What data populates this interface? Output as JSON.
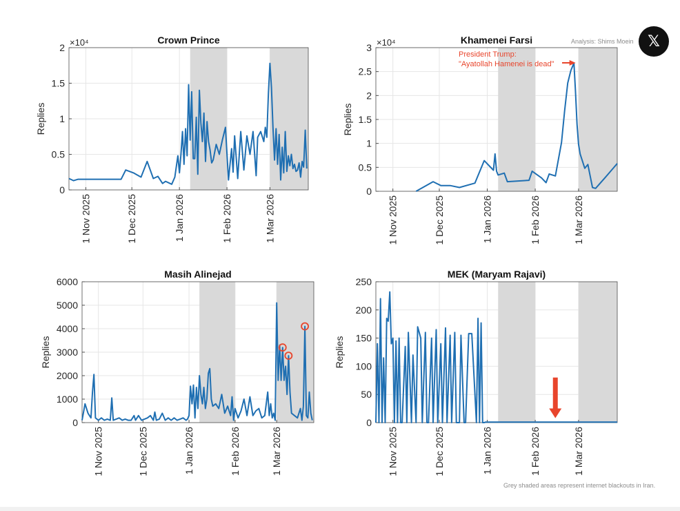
{
  "attribution": "Analysis: Shims Moein",
  "logo": {
    "icon": "x-logo-icon",
    "glyph": "𝕏"
  },
  "footnote": "Grey shaded areas represent internet blackouts in Iran.",
  "colors": {
    "line": "#1f6fb2",
    "blackout": "#d9d9d9",
    "annotation": "#e8452c",
    "grid": "#e6e6e6"
  },
  "chart_data": [
    {
      "type": "line",
      "title": "Crown Prince",
      "ylabel": "Replies",
      "y_multiplier": "×10⁴",
      "y_scale": 10000,
      "ylim": [
        0,
        20000
      ],
      "yticks": [
        0,
        5000,
        10000,
        15000,
        20000
      ],
      "ytick_labels": [
        "0",
        "0.5",
        "1",
        "1.5",
        "2"
      ],
      "xlim": [
        "2025-10-21",
        "2026-03-26"
      ],
      "xticks": [
        "2025-11-01",
        "2025-12-01",
        "2026-01-01",
        "2026-02-01",
        "2026-03-01"
      ],
      "xtick_labels": [
        "1 Nov 2025",
        "1 Dec 2025",
        "1 Jan 2026",
        "1 Feb 2026",
        "1 Mar 2026"
      ],
      "blackouts": [
        [
          "2026-01-08",
          "2026-02-01"
        ],
        [
          "2026-03-01",
          "2026-03-26"
        ]
      ],
      "series": [
        {
          "x": [
            "2025-10-21",
            "2025-10-24",
            "2025-10-27",
            "2025-11-10",
            "2025-11-24",
            "2025-11-27",
            "2025-12-02",
            "2025-12-07",
            "2025-12-11",
            "2025-12-15",
            "2025-12-18",
            "2025-12-21",
            "2025-12-23",
            "2025-12-27",
            "2025-12-29",
            "2025-12-31",
            "2026-01-01",
            "2026-01-02",
            "2026-01-03",
            "2026-01-04",
            "2026-01-05",
            "2026-01-06",
            "2026-01-07",
            "2026-01-08",
            "2026-01-09",
            "2026-01-10",
            "2026-01-11",
            "2026-01-12",
            "2026-01-13",
            "2026-01-14",
            "2026-01-15",
            "2026-01-16",
            "2026-01-17",
            "2026-01-18",
            "2026-01-19",
            "2026-01-20",
            "2026-01-21",
            "2026-01-22",
            "2026-01-23",
            "2026-01-25",
            "2026-01-27",
            "2026-01-29",
            "2026-01-31",
            "2026-02-02",
            "2026-02-04",
            "2026-02-05",
            "2026-02-06",
            "2026-02-08",
            "2026-02-10",
            "2026-02-12",
            "2026-02-14",
            "2026-02-16",
            "2026-02-18",
            "2026-02-20",
            "2026-02-21",
            "2026-02-23",
            "2026-02-25",
            "2026-02-26",
            "2026-02-27",
            "2026-02-28",
            "2026-03-01",
            "2026-03-02",
            "2026-03-03",
            "2026-03-04",
            "2026-03-05",
            "2026-03-06",
            "2026-03-07",
            "2026-03-08",
            "2026-03-09",
            "2026-03-10",
            "2026-03-11",
            "2026-03-12",
            "2026-03-13",
            "2026-03-14",
            "2026-03-15",
            "2026-03-16",
            "2026-03-17",
            "2026-03-18",
            "2026-03-19",
            "2026-03-20",
            "2026-03-21",
            "2026-03-22",
            "2026-03-23",
            "2026-03-24",
            "2026-03-25"
          ],
          "y": [
            1600,
            1300,
            1500,
            1500,
            1500,
            2800,
            2400,
            1800,
            4000,
            1600,
            1900,
            900,
            1200,
            800,
            1800,
            4800,
            2400,
            5000,
            8200,
            3600,
            8600,
            4800,
            14800,
            7000,
            13800,
            4400,
            4400,
            10200,
            2200,
            14000,
            9400,
            6800,
            10800,
            4000,
            9600,
            6800,
            5600,
            3800,
            4200,
            6400,
            5000,
            7000,
            8800,
            1400,
            5800,
            2500,
            7600,
            1600,
            8200,
            2800,
            7600,
            5000,
            8200,
            2000,
            7400,
            8200,
            6800,
            8800,
            7400,
            13600,
            17800,
            14400,
            8800,
            4200,
            8600,
            3600,
            7800,
            1400,
            6000,
            2400,
            8200,
            2600,
            4800,
            3400,
            5000,
            3000,
            3600,
            2600,
            2800,
            3800,
            1800,
            4000,
            3200,
            8400,
            3000
          ]
        }
      ]
    },
    {
      "type": "line",
      "title": "Khamenei Farsi",
      "ylabel": "Replies",
      "y_multiplier": "×10⁴",
      "y_scale": 10000,
      "ylim": [
        0,
        30000
      ],
      "yticks": [
        0,
        5000,
        10000,
        15000,
        20000,
        25000,
        30000
      ],
      "ytick_labels": [
        "0",
        "0.5",
        "1",
        "1.5",
        "2",
        "2.5",
        "3"
      ],
      "xlim": [
        "2025-10-21",
        "2026-03-26"
      ],
      "xticks": [
        "2025-11-01",
        "2025-12-01",
        "2026-01-01",
        "2026-02-01",
        "2026-03-01"
      ],
      "xtick_labels": [
        "1 Nov 2025",
        "1 Dec 2025",
        "1 Jan 2026",
        "1 Feb 2026",
        "1 Mar 2026"
      ],
      "blackouts": [
        [
          "2026-01-08",
          "2026-02-01"
        ],
        [
          "2026-03-01",
          "2026-03-26"
        ]
      ],
      "annotation": {
        "lines": [
          "President Trump:",
          "\"Ayatollah Hamenei is dead\""
        ],
        "x": "2026-02-28",
        "y": 26800
      },
      "series": [
        {
          "x": [
            "2025-11-16",
            "2025-11-27",
            "2025-12-02",
            "2025-12-08",
            "2025-12-14",
            "2025-12-24",
            "2025-12-30",
            "2026-01-05",
            "2026-01-06",
            "2026-01-07",
            "2026-01-08",
            "2026-01-12",
            "2026-01-14",
            "2026-01-28",
            "2026-01-30",
            "2026-02-05",
            "2026-02-08",
            "2026-02-10",
            "2026-02-14",
            "2026-02-18",
            "2026-02-20",
            "2026-02-22",
            "2026-02-24",
            "2026-02-26",
            "2026-02-27",
            "2026-02-28",
            "2026-03-01",
            "2026-03-02",
            "2026-03-05",
            "2026-03-07",
            "2026-03-10",
            "2026-03-12",
            "2026-03-18",
            "2026-03-26"
          ],
          "y": [
            0,
            2000,
            1200,
            1200,
            800,
            1700,
            6400,
            4400,
            7800,
            4200,
            3400,
            3800,
            2000,
            2300,
            4200,
            2800,
            1800,
            3600,
            3200,
            10200,
            16800,
            22600,
            25200,
            26800,
            21000,
            14000,
            9800,
            7800,
            4800,
            5600,
            800,
            600,
            2800,
            5800
          ]
        }
      ]
    },
    {
      "type": "line",
      "title": "Masih Alinejad",
      "ylabel": "Replies",
      "ylim": [
        0,
        6000
      ],
      "yticks": [
        0,
        1000,
        2000,
        3000,
        4000,
        5000,
        6000
      ],
      "ytick_labels": [
        "0",
        "1000",
        "2000",
        "3000",
        "4000",
        "5000",
        "6000"
      ],
      "xlim": [
        "2025-10-21",
        "2026-03-26"
      ],
      "xticks": [
        "2025-11-01",
        "2025-12-01",
        "2026-01-01",
        "2026-02-01",
        "2026-03-01"
      ],
      "xtick_labels": [
        "1 Nov 2025",
        "1 Dec 2025",
        "1 Jan 2026",
        "1 Feb 2026",
        "1 Mar 2026"
      ],
      "blackouts": [
        [
          "2026-01-08",
          "2026-02-01"
        ],
        [
          "2026-03-01",
          "2026-03-26"
        ]
      ],
      "highlights": [
        {
          "x": "2026-03-05",
          "y": 3200
        },
        {
          "x": "2026-03-09",
          "y": 2850
        },
        {
          "x": "2026-03-20",
          "y": 4100
        }
      ],
      "series": [
        {
          "x": [
            "2025-10-21",
            "2025-10-23",
            "2025-10-25",
            "2025-10-27",
            "2025-10-28",
            "2025-10-29",
            "2025-10-30",
            "2025-11-01",
            "2025-11-03",
            "2025-11-05",
            "2025-11-07",
            "2025-11-09",
            "2025-11-10",
            "2025-11-11",
            "2025-11-13",
            "2025-11-15",
            "2025-11-17",
            "2025-11-19",
            "2025-11-21",
            "2025-11-23",
            "2025-11-25",
            "2025-11-26",
            "2025-11-28",
            "2025-11-30",
            "2025-12-02",
            "2025-12-04",
            "2025-12-06",
            "2025-12-08",
            "2025-12-09",
            "2025-12-10",
            "2025-12-12",
            "2025-12-14",
            "2025-12-16",
            "2025-12-18",
            "2025-12-20",
            "2025-12-22",
            "2025-12-24",
            "2025-12-26",
            "2025-12-28",
            "2025-12-30",
            "2025-12-31",
            "2026-01-01",
            "2026-01-02",
            "2026-01-03",
            "2026-01-04",
            "2026-01-05",
            "2026-01-06",
            "2026-01-07",
            "2026-01-08",
            "2026-01-09",
            "2026-01-10",
            "2026-01-11",
            "2026-01-12",
            "2026-01-13",
            "2026-01-14",
            "2026-01-15",
            "2026-01-16",
            "2026-01-17",
            "2026-01-19",
            "2026-01-21",
            "2026-01-23",
            "2026-01-25",
            "2026-01-27",
            "2026-01-29",
            "2026-01-30",
            "2026-01-31",
            "2026-02-01",
            "2026-02-03",
            "2026-02-05",
            "2026-02-07",
            "2026-02-09",
            "2026-02-11",
            "2026-02-13",
            "2026-02-15",
            "2026-02-17",
            "2026-02-19",
            "2026-02-21",
            "2026-02-23",
            "2026-02-24",
            "2026-02-25",
            "2026-02-26",
            "2026-02-27",
            "2026-02-28",
            "2026-03-01",
            "2026-03-02",
            "2026-03-03",
            "2026-03-04",
            "2026-03-05",
            "2026-03-06",
            "2026-03-07",
            "2026-03-08",
            "2026-03-09",
            "2026-03-10",
            "2026-03-11",
            "2026-03-13",
            "2026-03-15",
            "2026-03-17",
            "2026-03-18",
            "2026-03-19",
            "2026-03-20",
            "2026-03-21",
            "2026-03-22",
            "2026-03-23",
            "2026-03-24",
            "2026-03-25"
          ],
          "y": [
            100,
            800,
            400,
            200,
            1300,
            2050,
            200,
            100,
            200,
            100,
            150,
            100,
            1050,
            100,
            150,
            200,
            100,
            150,
            100,
            100,
            300,
            100,
            300,
            100,
            150,
            200,
            300,
            100,
            450,
            100,
            150,
            400,
            100,
            200,
            100,
            200,
            100,
            150,
            200,
            100,
            150,
            300,
            1550,
            800,
            1600,
            200,
            1500,
            600,
            2000,
            1200,
            800,
            1500,
            600,
            1000,
            2100,
            2300,
            1000,
            700,
            800,
            600,
            1200,
            400,
            700,
            300,
            1100,
            100,
            600,
            200,
            500,
            1000,
            300,
            1100,
            300,
            500,
            600,
            200,
            300,
            1300,
            300,
            800,
            200,
            400,
            100,
            5100,
            1800,
            3300,
            1800,
            3200,
            1800,
            2400,
            1200,
            2850,
            1300,
            400,
            300,
            200,
            600,
            100,
            700,
            4100,
            300,
            200,
            1300,
            400,
            100
          ]
        }
      ]
    },
    {
      "type": "line",
      "title": "MEK (Maryam Rajavi)",
      "ylabel": "Replies",
      "ylim": [
        0,
        250
      ],
      "yticks": [
        0,
        50,
        100,
        150,
        200,
        250
      ],
      "ytick_labels": [
        "0",
        "50",
        "100",
        "150",
        "200",
        "250"
      ],
      "xlim": [
        "2025-10-21",
        "2026-03-26"
      ],
      "xticks": [
        "2025-11-01",
        "2025-12-01",
        "2026-01-01",
        "2026-02-01",
        "2026-03-01"
      ],
      "xtick_labels": [
        "1 Nov 2025",
        "1 Dec 2025",
        "1 Jan 2026",
        "1 Feb 2026",
        "1 Mar 2026"
      ],
      "blackouts": [
        [
          "2026-01-08",
          "2026-02-01"
        ],
        [
          "2026-03-01",
          "2026-03-26"
        ]
      ],
      "arrow": {
        "x": "2026-02-14",
        "y_top": 80,
        "y_bottom": 8
      },
      "series": [
        {
          "x": [
            "2025-10-21",
            "2025-10-22",
            "2025-10-23",
            "2025-10-24",
            "2025-10-25",
            "2025-10-26",
            "2025-10-27",
            "2025-10-28",
            "2025-10-29",
            "2025-10-30",
            "2025-10-31",
            "2025-11-01",
            "2025-11-02",
            "2025-11-03",
            "2025-11-04",
            "2025-11-05",
            "2025-11-06",
            "2025-11-07",
            "2025-11-09",
            "2025-11-10",
            "2025-11-11",
            "2025-11-13",
            "2025-11-14",
            "2025-11-16",
            "2025-11-17",
            "2025-11-19",
            "2025-11-20",
            "2025-11-22",
            "2025-11-23",
            "2025-11-24",
            "2025-11-26",
            "2025-11-27",
            "2025-11-29",
            "2025-11-30",
            "2025-12-02",
            "2025-12-03",
            "2025-12-05",
            "2025-12-06",
            "2025-12-08",
            "2025-12-09",
            "2025-12-11",
            "2025-12-12",
            "2025-12-14",
            "2025-12-15",
            "2025-12-17",
            "2025-12-18",
            "2025-12-20",
            "2025-12-22",
            "2025-12-25",
            "2025-12-26",
            "2025-12-27",
            "2025-12-28",
            "2025-12-29",
            "2025-12-30",
            "2025-12-31",
            "2026-01-10",
            "2026-01-25",
            "2026-02-05",
            "2026-02-15",
            "2026-02-25",
            "2026-03-05",
            "2026-03-15",
            "2026-03-26"
          ],
          "y": [
            0,
            140,
            0,
            220,
            0,
            115,
            0,
            185,
            180,
            232,
            140,
            150,
            0,
            145,
            0,
            150,
            0,
            0,
            135,
            0,
            160,
            0,
            120,
            0,
            170,
            150,
            0,
            160,
            0,
            0,
            150,
            0,
            165,
            0,
            140,
            0,
            168,
            0,
            155,
            0,
            160,
            0,
            0,
            155,
            0,
            0,
            158,
            158,
            0,
            185,
            0,
            177,
            0,
            0,
            1,
            1,
            1,
            1,
            1,
            1,
            1,
            1,
            1
          ]
        }
      ]
    }
  ]
}
